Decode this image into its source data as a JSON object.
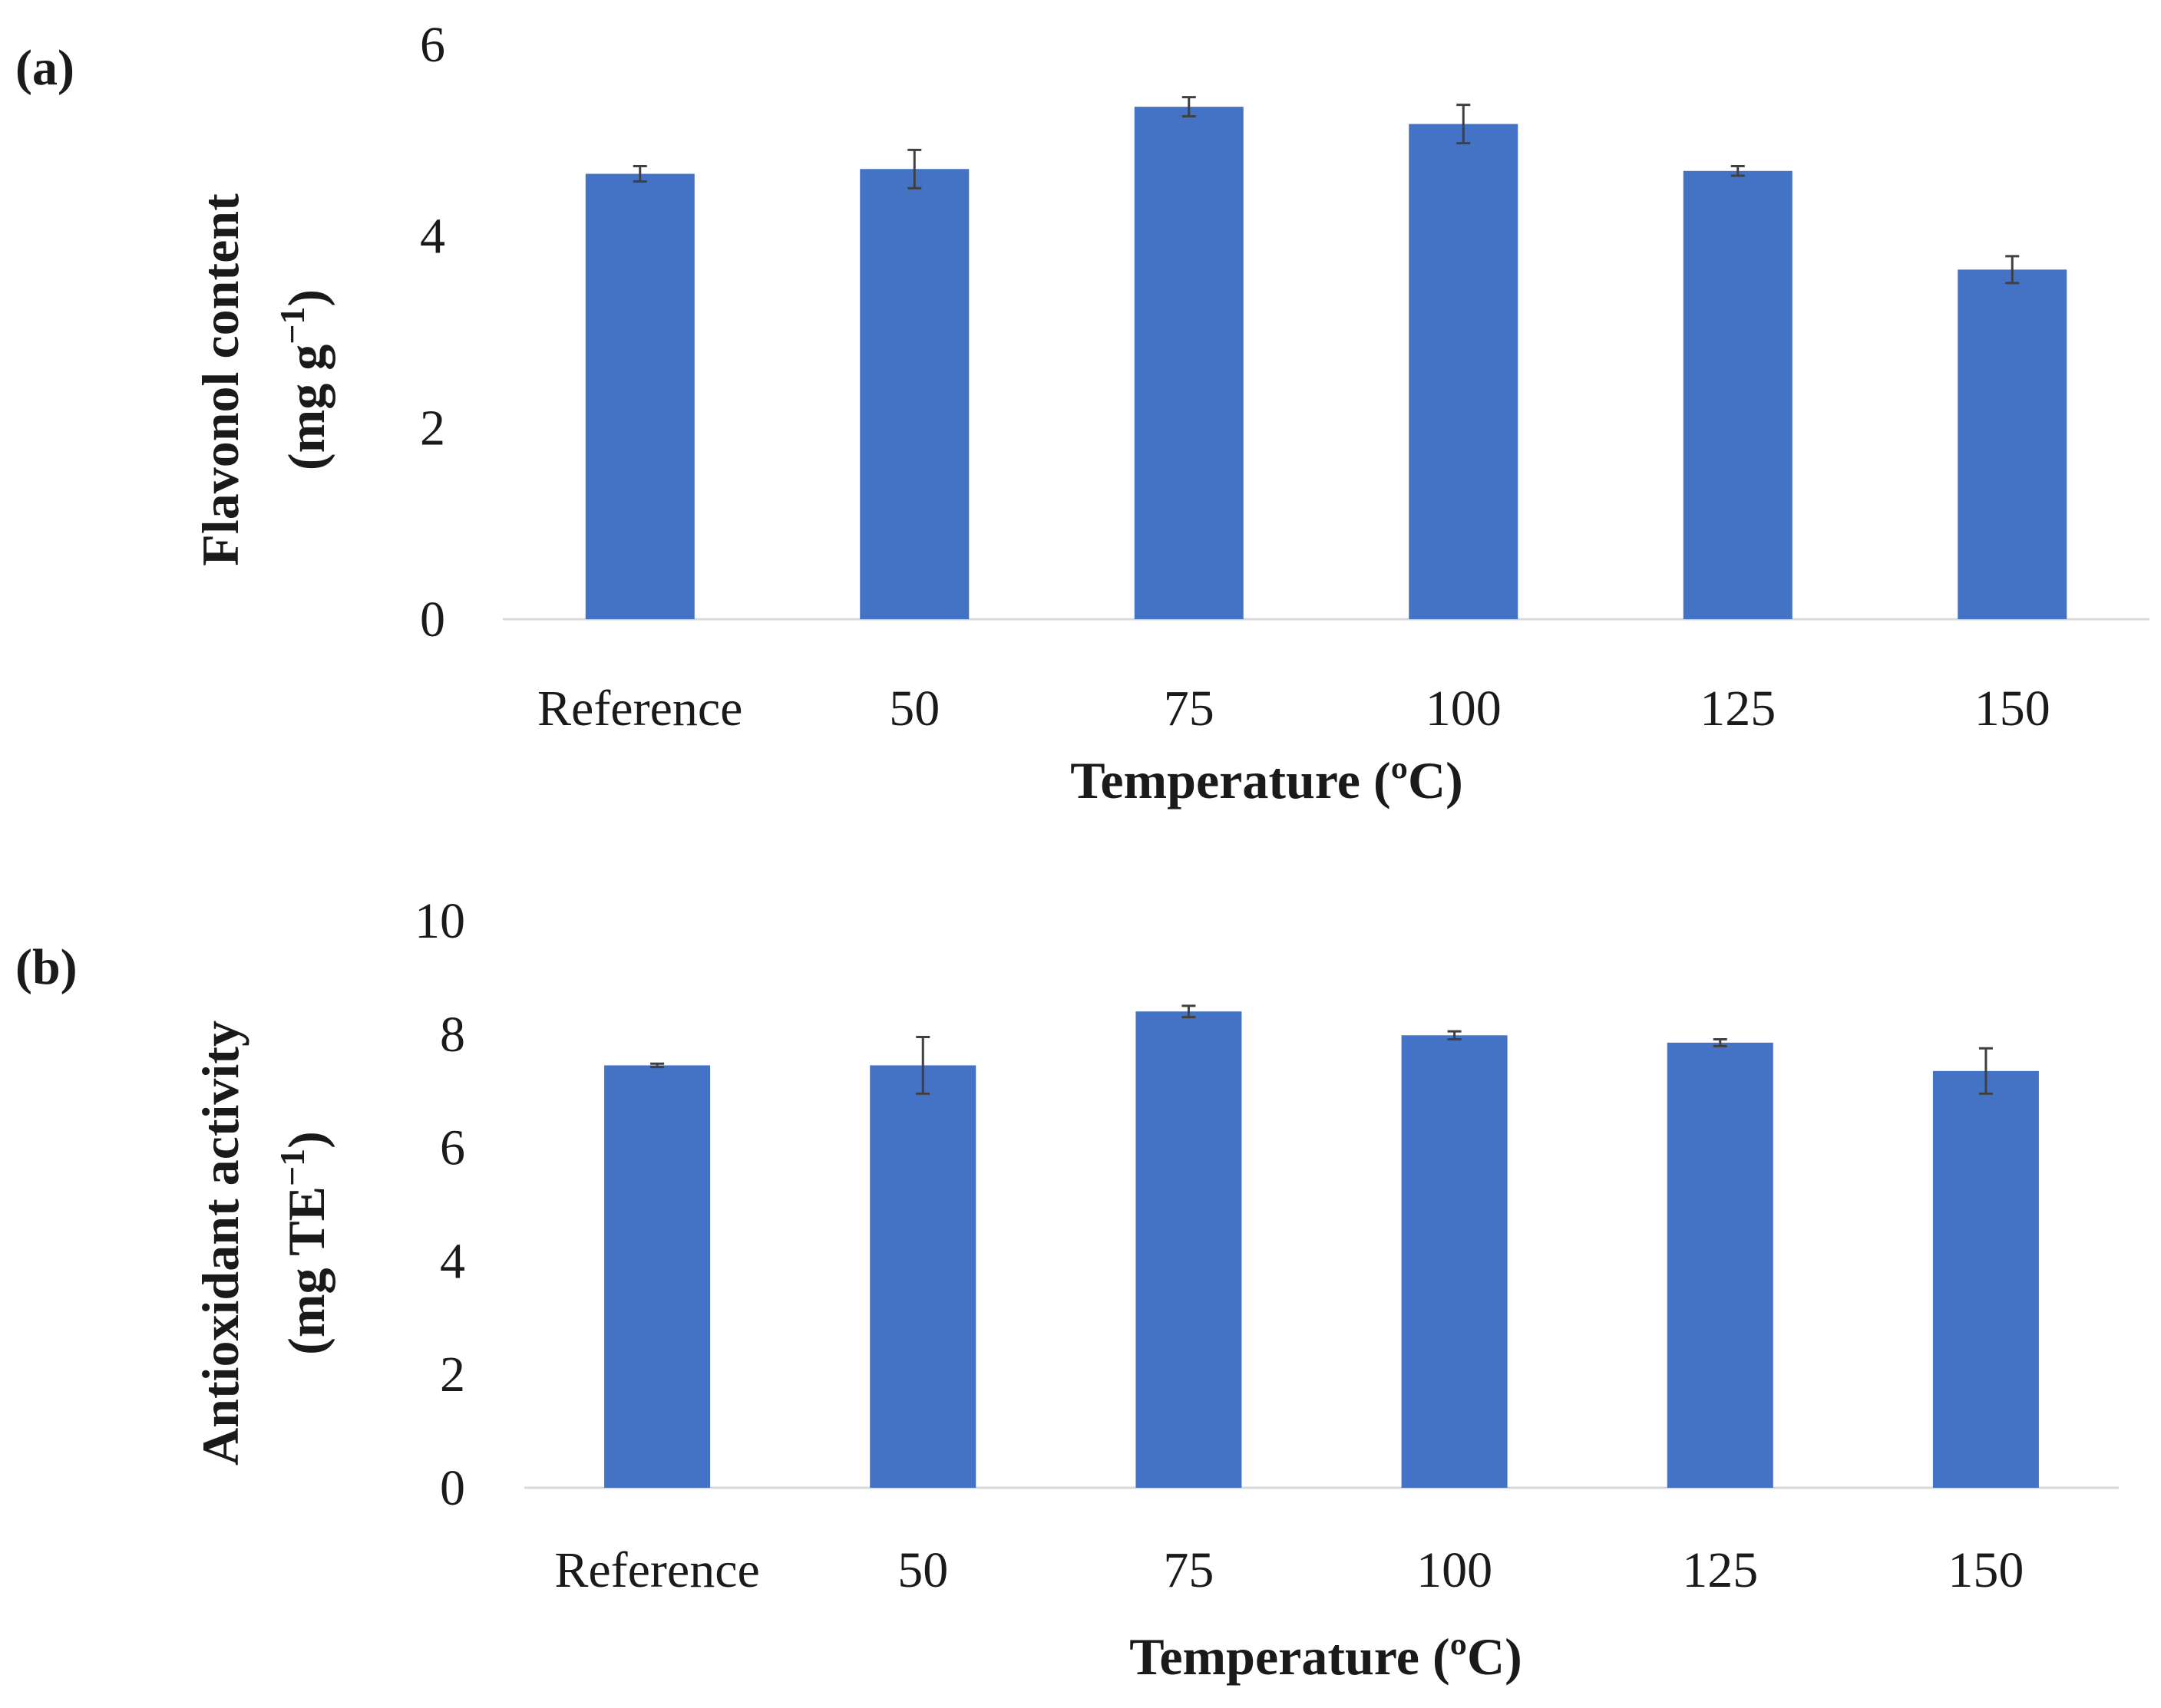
{
  "chart_data": [
    {
      "type": "bar",
      "panel_label": "(a)",
      "categories": [
        "Reference",
        "50",
        "75",
        "100",
        "125",
        "150"
      ],
      "values": [
        4.65,
        4.7,
        5.35,
        5.17,
        4.68,
        3.65
      ],
      "errors": [
        0.08,
        0.2,
        0.1,
        0.2,
        0.05,
        0.14
      ],
      "xlabel": "Temperature (ºC)",
      "ylabel_line1": "Flavonol content",
      "ylabel_line2": "(mg g",
      "ylabel_sup": "−1",
      "ylabel_close": ")",
      "ylim": [
        0,
        6
      ],
      "yticks": [
        0,
        2,
        4,
        6
      ],
      "ytick_labels": [
        "0",
        "2",
        "4",
        "6"
      ],
      "color": "#4472c4",
      "grid": false
    },
    {
      "type": "bar",
      "panel_label": "(b)",
      "categories": [
        "Reference",
        "50",
        "75",
        "100",
        "125",
        "150"
      ],
      "values": [
        7.45,
        7.45,
        8.4,
        7.98,
        7.85,
        7.35
      ],
      "errors": [
        0.03,
        0.5,
        0.1,
        0.07,
        0.06,
        0.4
      ],
      "xlabel": "Temperature (ºC)",
      "ylabel_line1": "Antioxidant activity",
      "ylabel_line2": "(mg TE",
      "ylabel_sup": "−1",
      "ylabel_close": ")",
      "ylim": [
        0,
        10
      ],
      "yticks": [
        0,
        2,
        4,
        6,
        8,
        10
      ],
      "ytick_labels": [
        "0",
        "2",
        "4",
        "6",
        "8",
        "10"
      ],
      "color": "#4472c4",
      "grid": false
    }
  ]
}
